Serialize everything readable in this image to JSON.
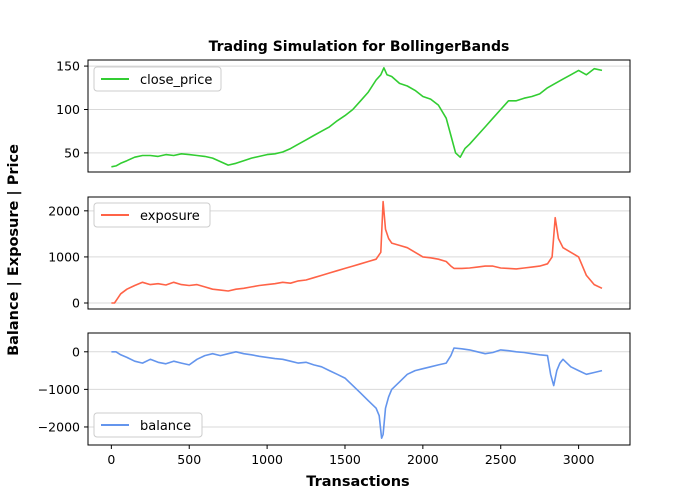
{
  "chart_data": {
    "type": "line",
    "title": "Trading Simulation for BollingerBands",
    "xlabel": "Transactions",
    "ylabel": "Balance | Exposure | Price",
    "xlim": [
      -150,
      3330
    ],
    "x_ticks": [
      "0",
      "500",
      "1000",
      "1500",
      "2000",
      "2500",
      "3000"
    ],
    "grid": "horizontal",
    "panels": [
      {
        "series": [
          {
            "name": "close_price",
            "color": "#32cd32",
            "x": [
              0,
              30,
              60,
              100,
              150,
              200,
              250,
              300,
              350,
              400,
              450,
              500,
              550,
              600,
              650,
              700,
              750,
              800,
              850,
              900,
              950,
              1000,
              1050,
              1100,
              1150,
              1200,
              1250,
              1300,
              1350,
              1400,
              1450,
              1500,
              1550,
              1600,
              1650,
              1700,
              1730,
              1750,
              1770,
              1800,
              1850,
              1900,
              1950,
              2000,
              2050,
              2100,
              2150,
              2180,
              2210,
              2240,
              2270,
              2300,
              2350,
              2400,
              2450,
              2500,
              2550,
              2600,
              2650,
              2700,
              2750,
              2800,
              2850,
              2900,
              2950,
              3000,
              3050,
              3100,
              3150
            ],
            "y": [
              34,
              35,
              38,
              41,
              45,
              47,
              47,
              46,
              48,
              47,
              49,
              48,
              47,
              46,
              44,
              40,
              36,
              38,
              41,
              44,
              46,
              48,
              49,
              51,
              55,
              60,
              65,
              70,
              75,
              80,
              87,
              93,
              100,
              110,
              120,
              134,
              140,
              148,
              140,
              138,
              130,
              127,
              122,
              115,
              112,
              105,
              90,
              70,
              50,
              45,
              55,
              60,
              70,
              80,
              90,
              100,
              110,
              110,
              113,
              115,
              118,
              125,
              130,
              135,
              140,
              145,
              140,
              147,
              145
            ]
          }
        ],
        "ylim": [
          28,
          157
        ],
        "yticks": [
          50,
          100,
          150
        ],
        "legend_position": "top-left"
      },
      {
        "series": [
          {
            "name": "exposure",
            "color": "#ff6347",
            "x": [
              0,
              20,
              40,
              60,
              100,
              150,
              200,
              250,
              300,
              350,
              400,
              450,
              500,
              550,
              600,
              650,
              700,
              750,
              800,
              850,
              900,
              950,
              1000,
              1050,
              1100,
              1150,
              1200,
              1250,
              1300,
              1350,
              1400,
              1450,
              1500,
              1550,
              1600,
              1650,
              1700,
              1730,
              1745,
              1760,
              1780,
              1800,
              1850,
              1900,
              1950,
              2000,
              2050,
              2100,
              2150,
              2180,
              2200,
              2250,
              2300,
              2350,
              2400,
              2450,
              2500,
              2550,
              2600,
              2650,
              2700,
              2750,
              2800,
              2830,
              2850,
              2870,
              2900,
              2950,
              3000,
              3050,
              3100,
              3150
            ],
            "y": [
              0,
              0,
              100,
              200,
              300,
              380,
              450,
              400,
              420,
              390,
              450,
              400,
              380,
              400,
              350,
              300,
              280,
              260,
              300,
              320,
              350,
              380,
              400,
              420,
              450,
              430,
              480,
              500,
              550,
              600,
              650,
              700,
              750,
              800,
              850,
              900,
              950,
              1100,
              2200,
              1600,
              1400,
              1300,
              1250,
              1200,
              1100,
              1000,
              980,
              950,
              900,
              800,
              750,
              750,
              760,
              780,
              800,
              800,
              760,
              750,
              740,
              760,
              780,
              800,
              850,
              1000,
              1850,
              1400,
              1200,
              1100,
              1000,
              600,
              400,
              320
            ]
          }
        ],
        "ylim": [
          -130,
          2300
        ],
        "yticks": [
          0,
          1000,
          2000
        ],
        "legend_position": "top-left"
      },
      {
        "series": [
          {
            "name": "balance",
            "color": "#6495ed",
            "x": [
              0,
              30,
              60,
              100,
              150,
              200,
              250,
              300,
              350,
              400,
              450,
              500,
              550,
              600,
              650,
              700,
              750,
              800,
              850,
              900,
              950,
              1000,
              1050,
              1100,
              1150,
              1200,
              1250,
              1300,
              1350,
              1400,
              1450,
              1500,
              1550,
              1600,
              1650,
              1700,
              1720,
              1735,
              1745,
              1760,
              1780,
              1800,
              1850,
              1900,
              1950,
              2000,
              2050,
              2100,
              2150,
              2180,
              2200,
              2250,
              2300,
              2350,
              2400,
              2450,
              2500,
              2550,
              2600,
              2650,
              2700,
              2750,
              2800,
              2820,
              2840,
              2860,
              2880,
              2900,
              2950,
              3000,
              3050,
              3100,
              3150
            ],
            "y": [
              0,
              0,
              -80,
              -150,
              -250,
              -300,
              -200,
              -280,
              -320,
              -250,
              -300,
              -350,
              -200,
              -100,
              -50,
              -100,
              -50,
              0,
              -50,
              -80,
              -120,
              -150,
              -180,
              -200,
              -250,
              -300,
              -280,
              -350,
              -400,
              -500,
              -600,
              -700,
              -900,
              -1100,
              -1300,
              -1500,
              -1700,
              -2300,
              -2200,
              -1500,
              -1200,
              -1000,
              -800,
              -600,
              -500,
              -450,
              -400,
              -350,
              -300,
              -100,
              100,
              80,
              50,
              0,
              -50,
              -20,
              50,
              30,
              0,
              -20,
              -50,
              -80,
              -100,
              -600,
              -900,
              -500,
              -300,
              -200,
              -400,
              -500,
              -600,
              -550,
              -500
            ]
          }
        ],
        "ylim": [
          -2480,
          500
        ],
        "yticks": [
          -2000,
          -1000,
          0
        ],
        "legend_position": "bottom-left"
      }
    ]
  },
  "ticks": {
    "panel0": [
      "50",
      "100",
      "150"
    ],
    "panel1": [
      "0",
      "1000",
      "2000"
    ],
    "panel2": [
      "−2000",
      "−1000",
      "0"
    ]
  }
}
